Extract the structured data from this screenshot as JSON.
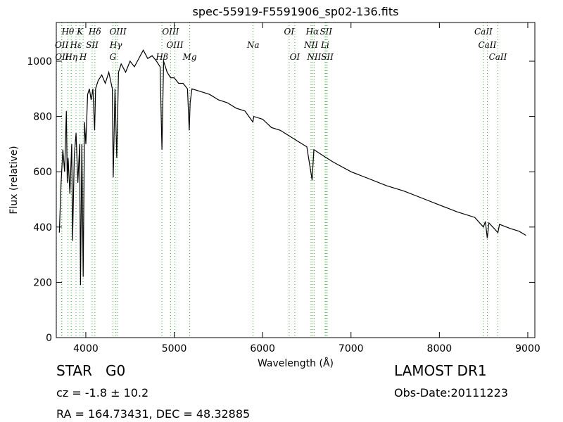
{
  "chart_data": {
    "type": "line",
    "title": "spec-55919-F5591906_sp02-136.fits",
    "x_label": "Wavelength (Å)",
    "y_label": "Flux (relative)",
    "color": "#000000",
    "line_marker_color": "#33aa33",
    "xlim": [
      3666,
      9080
    ],
    "ylim": [
      0,
      1140
    ],
    "xticks": [
      4000,
      5000,
      6000,
      7000,
      8000,
      9000
    ],
    "yticks": [
      0,
      200,
      400,
      600,
      800,
      1000
    ],
    "grid": false,
    "x": [
      3700,
      3720,
      3740,
      3760,
      3780,
      3790,
      3800,
      3820,
      3840,
      3850,
      3870,
      3890,
      3910,
      3930,
      3940,
      3955,
      3970,
      3985,
      4000,
      4020,
      4040,
      4060,
      4080,
      4100,
      4110,
      4140,
      4180,
      4220,
      4260,
      4300,
      4310,
      4330,
      4350,
      4370,
      4400,
      4450,
      4500,
      4550,
      4600,
      4650,
      4700,
      4750,
      4800,
      4840,
      4861,
      4880,
      4920,
      4960,
      5000,
      5050,
      5100,
      5150,
      5170,
      5180,
      5200,
      5300,
      5400,
      5500,
      5600,
      5700,
      5800,
      5890,
      5900,
      6000,
      6100,
      6200,
      6300,
      6400,
      6500,
      6560,
      6580,
      6700,
      6800,
      7000,
      7200,
      7400,
      7600,
      7800,
      8000,
      8200,
      8400,
      8498,
      8520,
      8542,
      8560,
      8662,
      8680,
      8800,
      8900,
      8980
    ],
    "values": [
      380,
      560,
      680,
      600,
      820,
      560,
      650,
      520,
      700,
      350,
      660,
      740,
      560,
      700,
      190,
      700,
      220,
      780,
      700,
      880,
      900,
      860,
      900,
      750,
      900,
      930,
      950,
      920,
      960,
      900,
      580,
      900,
      650,
      960,
      990,
      960,
      1000,
      980,
      1010,
      1040,
      1010,
      1020,
      1000,
      980,
      680,
      1000,
      960,
      940,
      940,
      920,
      920,
      900,
      750,
      850,
      900,
      890,
      880,
      860,
      850,
      830,
      820,
      780,
      800,
      790,
      760,
      750,
      730,
      710,
      690,
      570,
      680,
      655,
      635,
      600,
      575,
      550,
      530,
      505,
      480,
      455,
      435,
      400,
      420,
      360,
      415,
      380,
      410,
      395,
      385,
      370
    ],
    "line_rows": [
      [
        {
          "label": "Hθ",
          "wavelength": 3797
        },
        {
          "label": "K",
          "wavelength": 3934
        },
        {
          "label": "Hδ",
          "wavelength": 4102
        },
        {
          "label": "OIII",
          "wavelength": 4363
        },
        {
          "label": "OIII",
          "wavelength": 4959
        },
        {
          "label": "OI",
          "wavelength": 6300
        },
        {
          "label": "Hα",
          "wavelength": 6563
        },
        {
          "label": "SII",
          "wavelength": 6717
        },
        {
          "label": "CaII",
          "wavelength": 8498
        }
      ],
      [
        {
          "label": "OII",
          "wavelength": 3727
        },
        {
          "label": "Hε",
          "wavelength": 3889
        },
        {
          "label": "SII",
          "wavelength": 4072
        },
        {
          "label": "Hγ",
          "wavelength": 4340
        },
        {
          "label": "OIII",
          "wavelength": 5007
        },
        {
          "label": "Na",
          "wavelength": 5893
        },
        {
          "label": "NII",
          "wavelength": 6548
        },
        {
          "label": "Li",
          "wavelength": 6707
        },
        {
          "label": "CaII",
          "wavelength": 8542
        }
      ],
      [
        {
          "label": "OII",
          "wavelength": 3729
        },
        {
          "label": "Hη",
          "wavelength": 3835
        },
        {
          "label": "H",
          "wavelength": 3969
        },
        {
          "label": "G",
          "wavelength": 4305
        },
        {
          "label": "Hβ",
          "wavelength": 4861
        },
        {
          "label": "Mg",
          "wavelength": 5175
        },
        {
          "label": "OI",
          "wavelength": 6364
        },
        {
          "label": "NII",
          "wavelength": 6583
        },
        {
          "label": "SII",
          "wavelength": 6731
        },
        {
          "label": "CaII",
          "wavelength": 8662
        }
      ]
    ]
  },
  "footer": {
    "object_class": "STAR",
    "subclass": "G0",
    "redshift": "cz = -1.8 ± 10.2",
    "coords": "RA = 164.73431, DEC = 48.32885",
    "survey": "LAMOST DR1",
    "obs_date": "Obs-Date:20111223"
  }
}
